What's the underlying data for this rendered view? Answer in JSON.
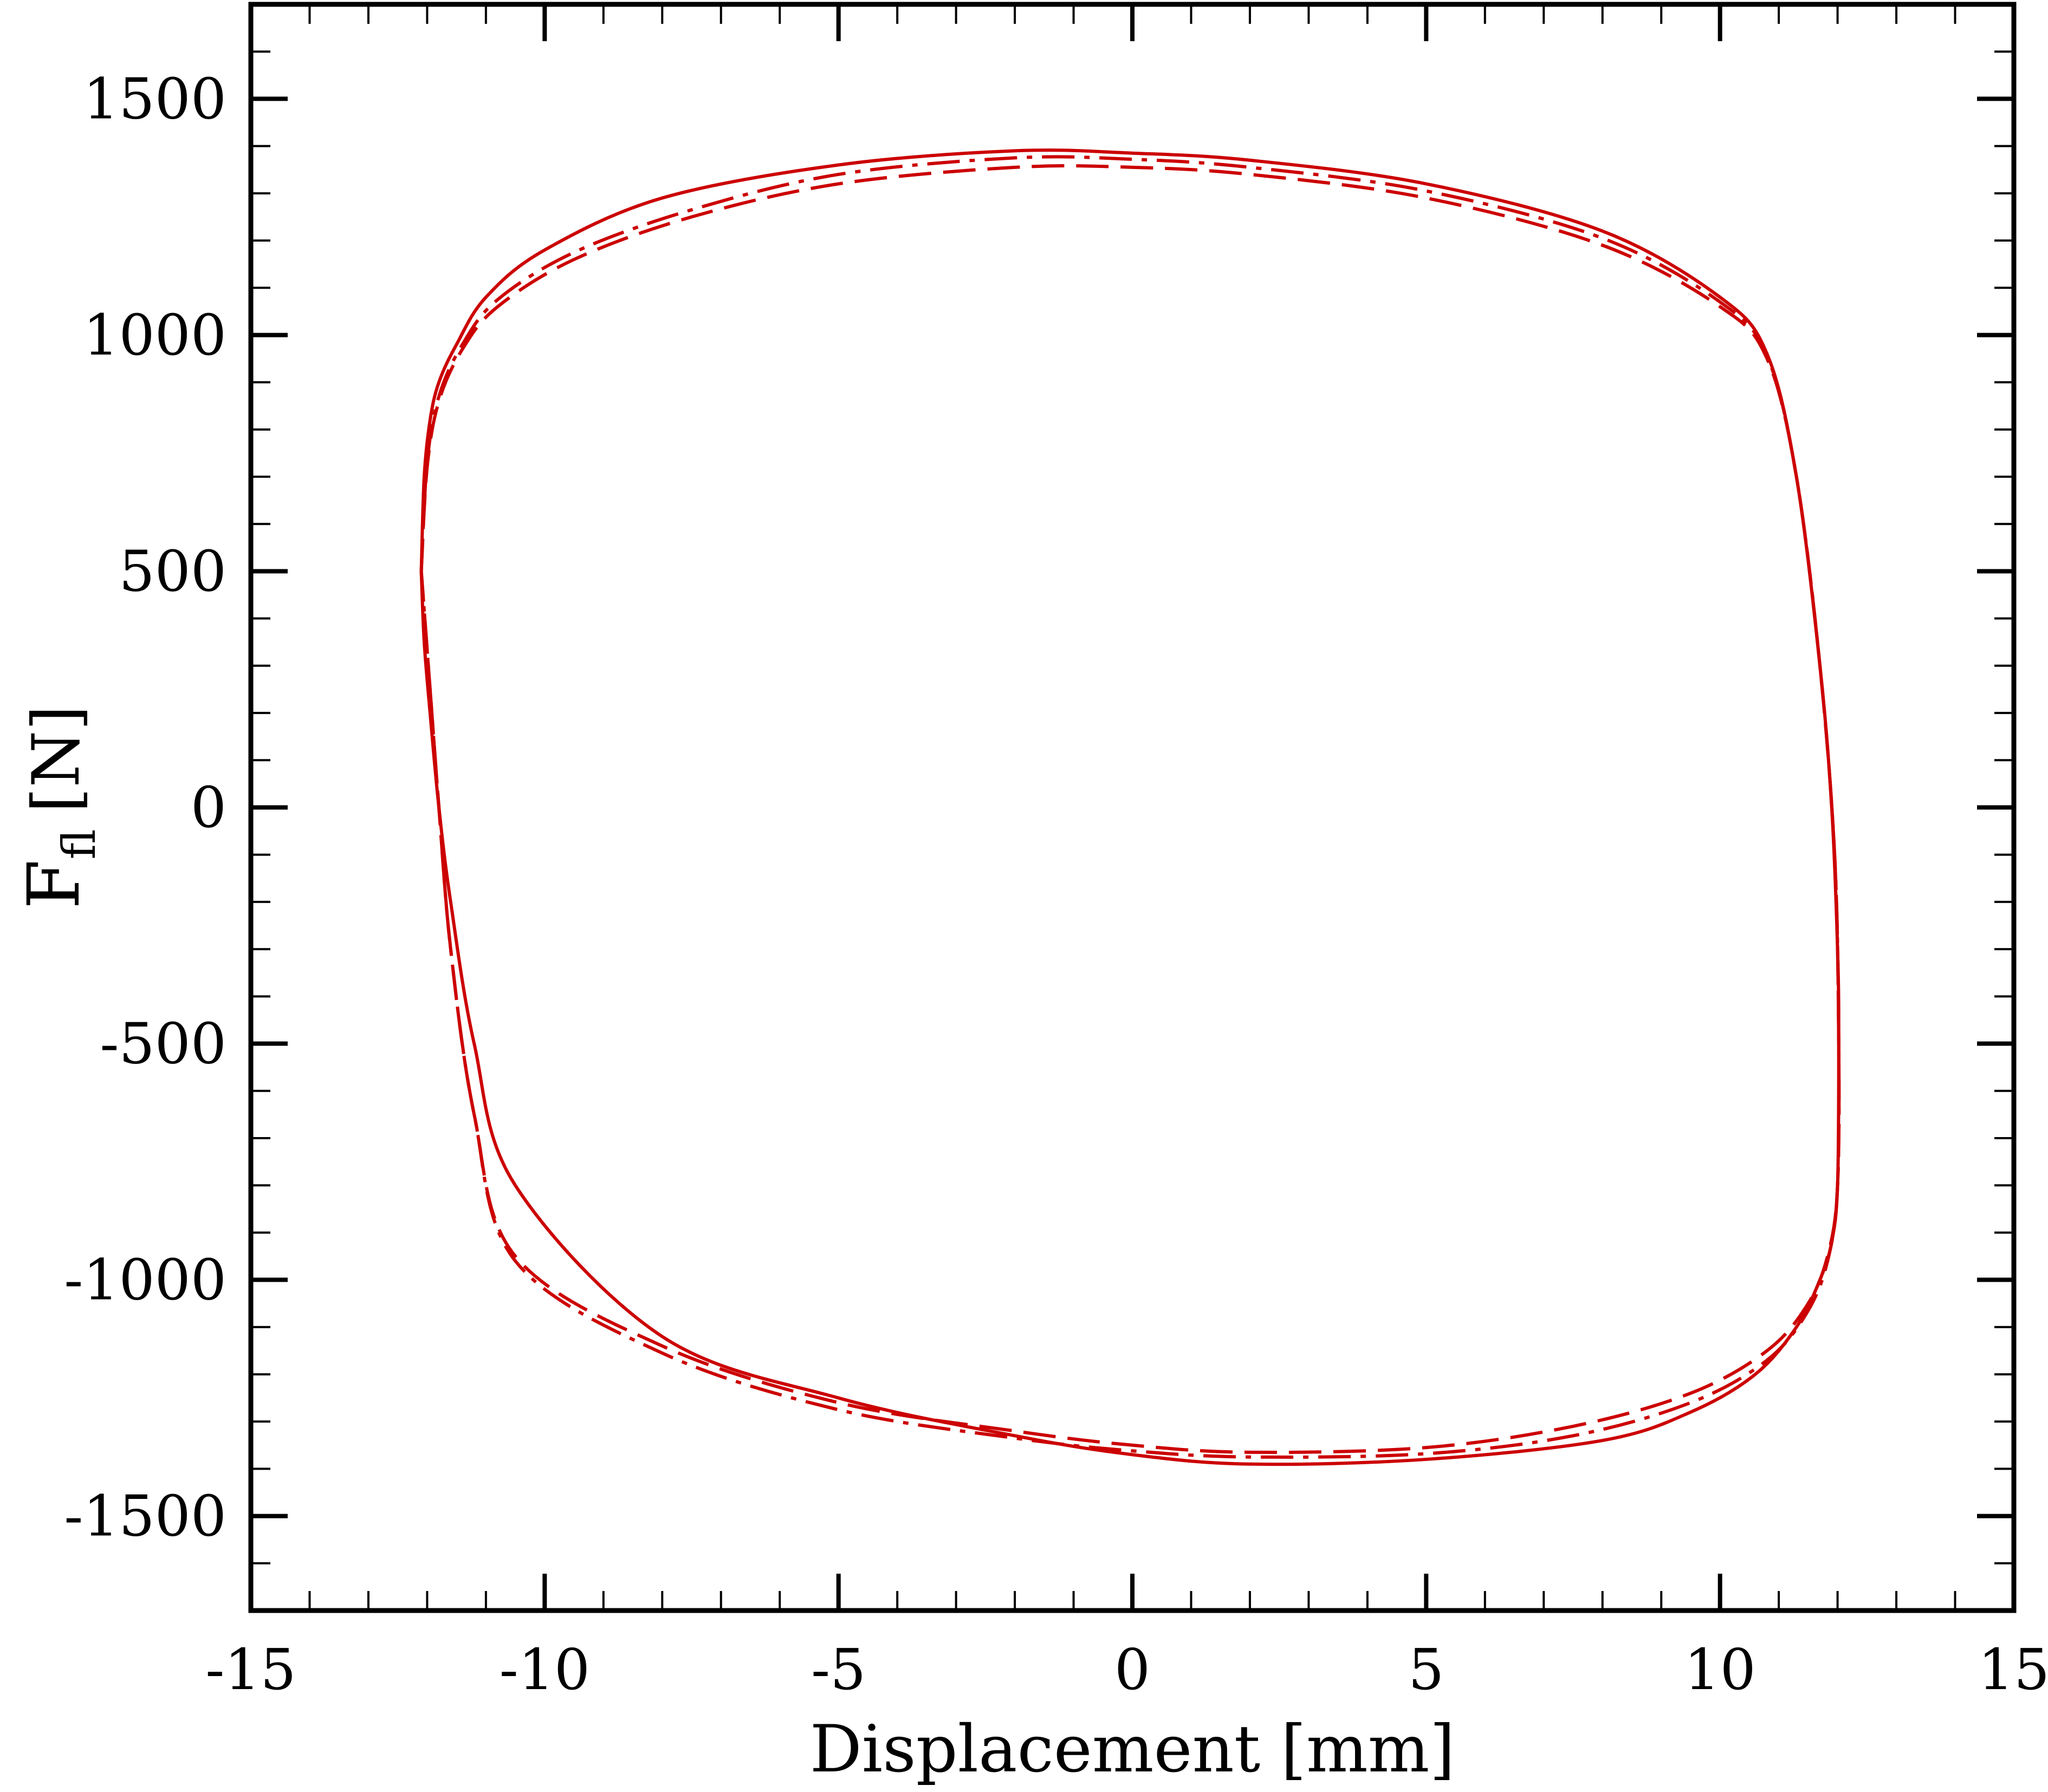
{
  "chart_data": {
    "type": "line",
    "title": "",
    "xlabel": "Displacement [mm]",
    "ylabel_main": "F",
    "ylabel_sub": "fl",
    "ylabel_unit": "[N]",
    "xlim": [
      -15,
      15
    ],
    "ylim": [
      -1700,
      1700
    ],
    "xticks": [
      -15,
      -10,
      -5,
      0,
      5,
      10,
      15
    ],
    "yticks": [
      -1500,
      -1000,
      -500,
      0,
      500,
      1000,
      1500
    ],
    "xtick_labels": [
      "-15",
      "-10",
      "-5",
      "0",
      "5",
      "10",
      "15"
    ],
    "ytick_labels": [
      "-1500",
      "-1000",
      "-500",
      "0",
      "500",
      "1000",
      "1500"
    ],
    "grid": false,
    "legend": "none",
    "series_color": "#cc0000",
    "series": [
      {
        "style": "solid",
        "x": [
          -12.1,
          -12.05,
          -11.95,
          -11.8,
          -11.5,
          -11.0,
          -10.0,
          -8.0,
          -5.0,
          -2.0,
          0,
          2.0,
          5.0,
          8.0,
          10.0,
          10.8,
          11.3,
          11.7,
          11.9,
          12.0,
          12.02,
          12.0,
          11.9,
          11.7,
          11.3,
          10.6,
          9.5,
          8.0,
          5.0,
          2.0,
          0,
          -2.0,
          -5.0,
          -8.0,
          -10.5,
          -11.2,
          -11.6,
          -11.8,
          -11.95,
          -12.05,
          -12.1
        ],
        "y": [
          500,
          700,
          820,
          900,
          980,
          1080,
          1180,
          1290,
          1360,
          1390,
          1385,
          1370,
          1320,
          1220,
          1080,
          960,
          700,
          300,
          0,
          -300,
          -500,
          -800,
          -920,
          -1000,
          -1100,
          -1200,
          -1280,
          -1340,
          -1380,
          -1390,
          -1370,
          -1330,
          -1250,
          -1120,
          -800,
          -500,
          -200,
          0,
          200,
          350,
          500
        ]
      },
      {
        "style": "dashed",
        "x": [
          -12.1,
          -12.0,
          -11.8,
          -11.4,
          -10.8,
          -9.5,
          -7.5,
          -5.0,
          -2.0,
          0,
          2.0,
          5.0,
          8.0,
          10.0,
          10.8,
          11.3,
          11.7,
          11.95,
          12.02,
          12.0,
          11.85,
          11.5,
          10.8,
          9.5,
          7.5,
          5.0,
          2.0,
          0,
          -2.0,
          -5.0,
          -8.0,
          -10.5,
          -11.2,
          -11.6,
          -11.8,
          -11.95,
          -12.1
        ],
        "y": [
          500,
          720,
          860,
          970,
          1060,
          1160,
          1250,
          1320,
          1355,
          1355,
          1340,
          1290,
          1190,
          1060,
          950,
          700,
          300,
          -100,
          -500,
          -800,
          -940,
          -1050,
          -1150,
          -1240,
          -1310,
          -1355,
          -1365,
          -1350,
          -1320,
          -1260,
          -1140,
          -950,
          -650,
          -300,
          0,
          250,
          500
        ]
      },
      {
        "style": "dashdot",
        "x": [
          -12.1,
          -12.0,
          -11.8,
          -11.4,
          -10.8,
          -9.5,
          -7.5,
          -5.0,
          -2.0,
          0,
          2.0,
          5.0,
          8.0,
          10.0,
          10.8,
          11.3,
          11.7,
          11.95,
          12.02,
          12.0,
          11.85,
          11.5,
          10.8,
          9.5,
          7.5,
          5.0,
          2.0,
          0,
          -2.0,
          -5.0,
          -8.0,
          -10.5,
          -11.2,
          -11.6,
          -11.8,
          -11.95,
          -12.1
        ],
        "y": [
          500,
          730,
          870,
          980,
          1075,
          1175,
          1265,
          1340,
          1375,
          1372,
          1355,
          1305,
          1205,
          1070,
          955,
          700,
          300,
          -100,
          -500,
          -800,
          -950,
          -1065,
          -1170,
          -1260,
          -1330,
          -1368,
          -1375,
          -1362,
          -1335,
          -1275,
          -1155,
          -960,
          -650,
          -300,
          0,
          250,
          500
        ]
      }
    ]
  }
}
